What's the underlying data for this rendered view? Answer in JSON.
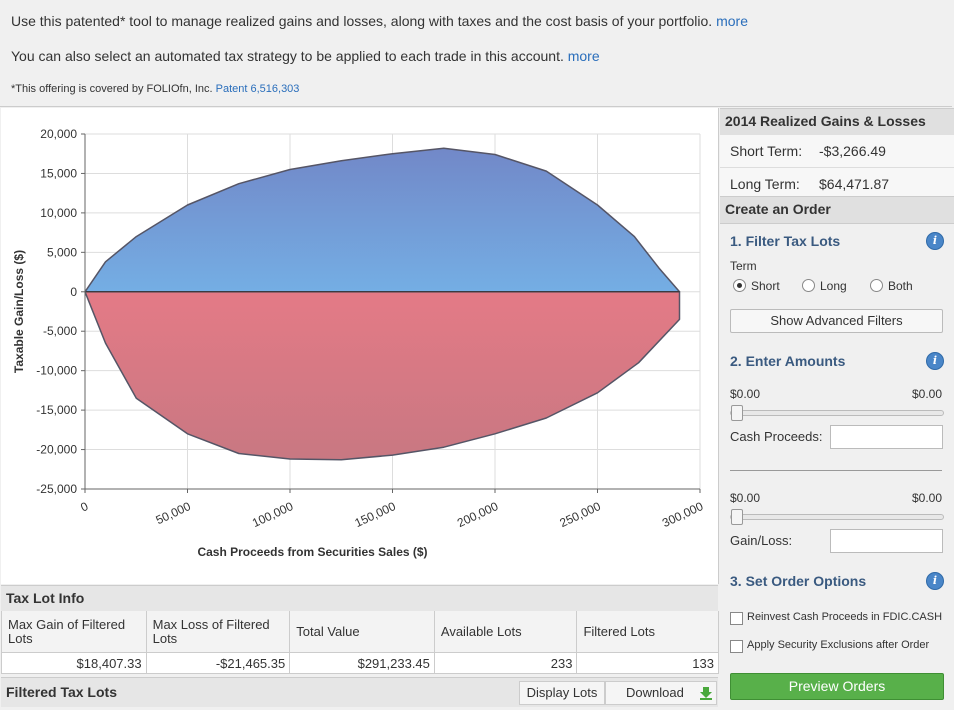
{
  "intro": {
    "line1": "Use this patented* tool to manage realized gains and losses, along with taxes and the cost basis of your portfolio.",
    "line1_link": "more",
    "line2": "You can also select an automated tax strategy to be applied to each trade in this account.",
    "line2_link": "more",
    "footnote": "*This offering is covered by FOLIOfn, Inc.",
    "patent_link": "Patent 6,516,303"
  },
  "chart_data": {
    "type": "area",
    "xlabel": "Cash Proceeds from Securities Sales ($)",
    "ylabel": "Taxable Gain/Loss ($)",
    "xlim": [
      0,
      300000
    ],
    "ylim": [
      -25000,
      20000
    ],
    "x_ticks": [
      "0",
      "50,000",
      "100,000",
      "150,000",
      "200,000",
      "250,000",
      "300,000"
    ],
    "y_ticks": [
      "20,000",
      "15,000",
      "10,000",
      "5,000",
      "0",
      "-5,000",
      "-10,000",
      "-15,000",
      "-20,000",
      "-25,000"
    ],
    "grid": true,
    "colors": {
      "gain": "#6b8fd4",
      "loss": "#e0707a",
      "outline": "#555566"
    },
    "series": [
      {
        "values": [
          [
            0,
            0
          ],
          [
            10000,
            3800
          ],
          [
            25000,
            7000
          ],
          [
            50000,
            11000
          ],
          [
            75000,
            13700
          ],
          [
            100000,
            15500
          ],
          [
            125000,
            16600
          ],
          [
            150000,
            17500
          ],
          [
            175000,
            18200
          ],
          [
            200000,
            17400
          ],
          [
            225000,
            15300
          ],
          [
            250000,
            11000
          ],
          [
            268000,
            7000
          ],
          [
            280000,
            3000
          ],
          [
            290000,
            0
          ]
        ]
      },
      {
        "values": [
          [
            0,
            0
          ],
          [
            10000,
            -6500
          ],
          [
            25000,
            -13500
          ],
          [
            50000,
            -18000
          ],
          [
            75000,
            -20500
          ],
          [
            100000,
            -21200
          ],
          [
            125000,
            -21300
          ],
          [
            150000,
            -20700
          ],
          [
            175000,
            -19700
          ],
          [
            200000,
            -18000
          ],
          [
            225000,
            -16000
          ],
          [
            250000,
            -12800
          ],
          [
            270000,
            -9000
          ],
          [
            290000,
            -3500
          ],
          [
            290000,
            0
          ]
        ]
      }
    ]
  },
  "tax_lot_info": {
    "title": "Tax Lot Info",
    "headers": [
      "Max Gain of Filtered Lots",
      "Max Loss of Filtered Lots",
      "Total Value",
      "Available Lots",
      "Filtered Lots"
    ],
    "values": [
      "$18,407.33",
      "-$21,465.35",
      "$291,233.45",
      "233",
      "133"
    ]
  },
  "filtered_tax_lots": {
    "title": "Filtered Tax Lots",
    "display_label": "Display Lots",
    "download_label": "Download"
  },
  "sidebar": {
    "realized_title": "2014 Realized Gains & Losses",
    "short_term_label": "Short Term:",
    "short_term_value": "-$3,266.49",
    "long_term_label": "Long Term:",
    "long_term_value": "$64,471.87",
    "create_order_title": "Create an Order",
    "filter_title": "1. Filter Tax Lots",
    "term_label": "Term",
    "term_options": [
      "Short",
      "Long",
      "Both"
    ],
    "term_selected": "Short",
    "advanced_filters": "Show Advanced Filters",
    "amounts_title": "2. Enter Amounts",
    "cash_min": "$0.00",
    "cash_max": "$0.00",
    "cash_proceeds_label": "Cash Proceeds:",
    "gain_min": "$0.00",
    "gain_max": "$0.00",
    "gain_loss_label": "Gain/Loss:",
    "options_title": "3. Set Order Options",
    "reinvest_label": "Reinvest Cash Proceeds in FDIC.CASH",
    "exclusions_label": "Apply Security Exclusions after Order",
    "preview_label": "Preview Orders"
  }
}
